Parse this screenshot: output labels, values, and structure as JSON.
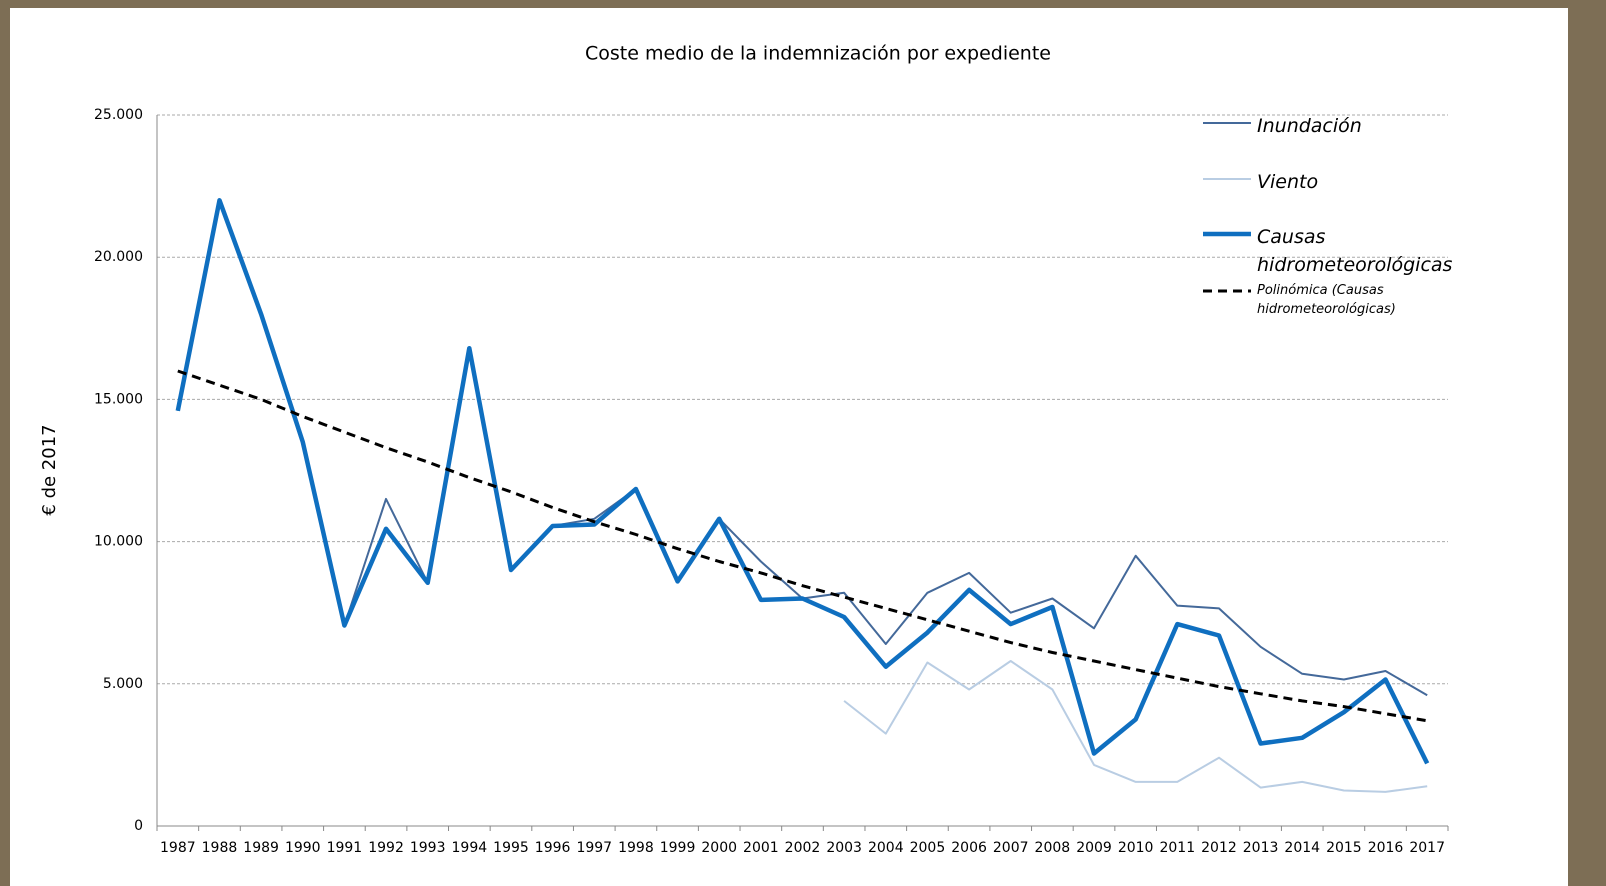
{
  "chart_data": {
    "type": "line",
    "title": "Coste medio de la indemnización por expediente",
    "ylabel": "€ de 2017",
    "categories": [
      "1987",
      "1988",
      "1989",
      "1990",
      "1991",
      "1992",
      "1993",
      "1994",
      "1995",
      "1996",
      "1997",
      "1998",
      "1999",
      "2000",
      "2001",
      "2002",
      "2003",
      "2004",
      "2005",
      "2006",
      "2007",
      "2008",
      "2009",
      "2010",
      "2011",
      "2012",
      "2013",
      "2014",
      "2015",
      "2016",
      "2017"
    ],
    "series": [
      {
        "name": "Inundación",
        "color": "#44699a",
        "line_width": 2,
        "dash": false,
        "values": [
          14600,
          22000,
          18000,
          13500,
          7050,
          11500,
          8550,
          16800,
          9000,
          10550,
          10800,
          11850,
          8600,
          10800,
          9300,
          8000,
          8200,
          6400,
          8200,
          8900,
          7500,
          8000,
          6950,
          9500,
          7750,
          7650,
          6300,
          5350,
          5150,
          5450,
          4600
        ]
      },
      {
        "name": "Viento",
        "color": "#b9cde3",
        "line_width": 2,
        "dash": false,
        "values": [
          null,
          null,
          null,
          null,
          null,
          null,
          null,
          null,
          null,
          null,
          null,
          null,
          null,
          null,
          null,
          null,
          4400,
          3250,
          5750,
          4800,
          5800,
          4800,
          2150,
          1550,
          1550,
          2400,
          1350,
          1550,
          1250,
          1200,
          1400
        ]
      },
      {
        "name": "Causas hidrometeorológicas",
        "color": "#0f6fc0",
        "line_width": 4.5,
        "dash": false,
        "values": [
          14600,
          22000,
          18000,
          13500,
          7050,
          10450,
          8550,
          16800,
          9000,
          10550,
          10600,
          11850,
          8600,
          10800,
          7950,
          8000,
          7350,
          5600,
          6800,
          8300,
          7100,
          7700,
          2550,
          3750,
          7100,
          6700,
          2900,
          3100,
          4000,
          5150,
          2200
        ]
      },
      {
        "name": "Polinómica (Causas hidrometeorológicas)",
        "color": "#000000",
        "line_width": 3,
        "dash": true,
        "values": [
          16000,
          15500,
          15000,
          14400,
          13850,
          13300,
          12800,
          12250,
          11750,
          11200,
          10700,
          10250,
          9750,
          9300,
          8900,
          8450,
          8050,
          7650,
          7250,
          6850,
          6450,
          6100,
          5800,
          5500,
          5200,
          4900,
          4650,
          4400,
          4200,
          3950,
          3700
        ]
      }
    ],
    "ylim": [
      0,
      25000
    ],
    "yticks": [
      0,
      {
        "value": 5000,
        "label": "5.000"
      },
      {
        "value": 10000,
        "label": "10.000"
      },
      {
        "value": 15000,
        "label": "15.000"
      },
      {
        "value": 20000,
        "label": "20.000"
      },
      {
        "value": 25000,
        "label": "25.000"
      }
    ],
    "grid": true,
    "legend": "right"
  }
}
